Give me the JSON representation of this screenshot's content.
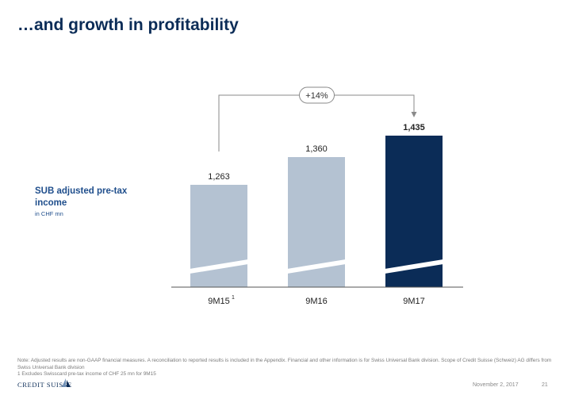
{
  "slide": {
    "title": "…and growth in profitability",
    "series_label": "SUB adjusted pre-tax income",
    "unit_label": "in CHF mn",
    "footnotes": [
      "Note: Adjusted results are non-GAAP financial measures. A reconciliation to reported results is included in the Appendix. Financial and other information is for Swiss Universal Bank division. Scope of Credit Suisse (Schweiz) AG differs from Swiss Universal Bank division",
      "1 Excludes Swisscard pre-tax income of CHF 25 mn for 9M15"
    ],
    "logo_text": "CREDIT SUISSE",
    "date": "November 2, 2017",
    "page_number": "21"
  },
  "chart_data": {
    "type": "bar",
    "categories": [
      "9M15",
      "9M16",
      "9M17"
    ],
    "category_superscripts": [
      "1",
      "",
      ""
    ],
    "values": [
      1263,
      1360,
      1435
    ],
    "value_labels": [
      "1,263",
      "1,360",
      "1,435"
    ],
    "bold_value_index": 2,
    "colors": [
      "#b4c2d2",
      "#b4c2d2",
      "#0b2c57"
    ],
    "axis_break": true,
    "growth_annotation": {
      "label": "+14%",
      "from": "9M15",
      "to": "9M17"
    },
    "ylabel": "SUB adjusted pre-tax income",
    "yunit": "in CHF mn"
  }
}
